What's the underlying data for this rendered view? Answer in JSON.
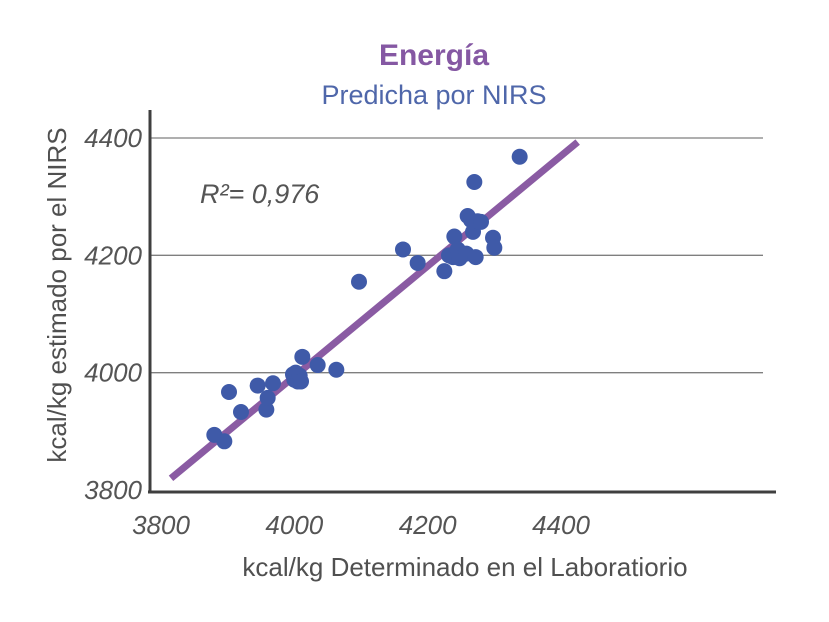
{
  "chart_data": {
    "type": "scatter",
    "title": "Energía",
    "subtitle": "Predicha por NIRS",
    "xlabel": "kcal/kg Determinado en el Laboratiorio",
    "ylabel": "kcal/kg estimado por el NIRS",
    "xlim": [
      3800,
      4420
    ],
    "ylim": [
      3800,
      4420
    ],
    "xticks": [
      3800,
      4000,
      4200,
      4400
    ],
    "yticks": [
      3800,
      4000,
      4200,
      4400
    ],
    "grid": "horizontal",
    "annotation": "R²= 0,976",
    "fit_line": {
      "x": [
        3815,
        4425
      ],
      "y": [
        3820,
        4393
      ]
    },
    "points": {
      "x": [
        3880,
        3895,
        3902,
        3920,
        3945,
        3958,
        3960,
        3968,
        3998,
        4000,
        4002,
        4005,
        4008,
        4010,
        4012,
        4035,
        4063,
        4097,
        4163,
        4185,
        4225,
        4232,
        4238,
        4240,
        4245,
        4248,
        4258,
        4260,
        4265,
        4268,
        4270,
        4272,
        4275,
        4280,
        4298,
        4300,
        4338
      ],
      "y": [
        3894,
        3883,
        3967,
        3933,
        3978,
        3937,
        3957,
        3982,
        3997,
        3988,
        4000,
        3985,
        3995,
        3985,
        4027,
        4013,
        4005,
        4155,
        4210,
        4187,
        4173,
        4200,
        4197,
        4232,
        4210,
        4195,
        4203,
        4267,
        4260,
        4240,
        4325,
        4197,
        4258,
        4257,
        4230,
        4213,
        4368
      ]
    },
    "colors": {
      "title": "#8558A3",
      "subtitle": "#4F67AA",
      "points": "#3F5AA8",
      "fit_line": "#8A5BA3",
      "grid": "#7F7F7F",
      "axis": "#3F3F3F"
    }
  }
}
